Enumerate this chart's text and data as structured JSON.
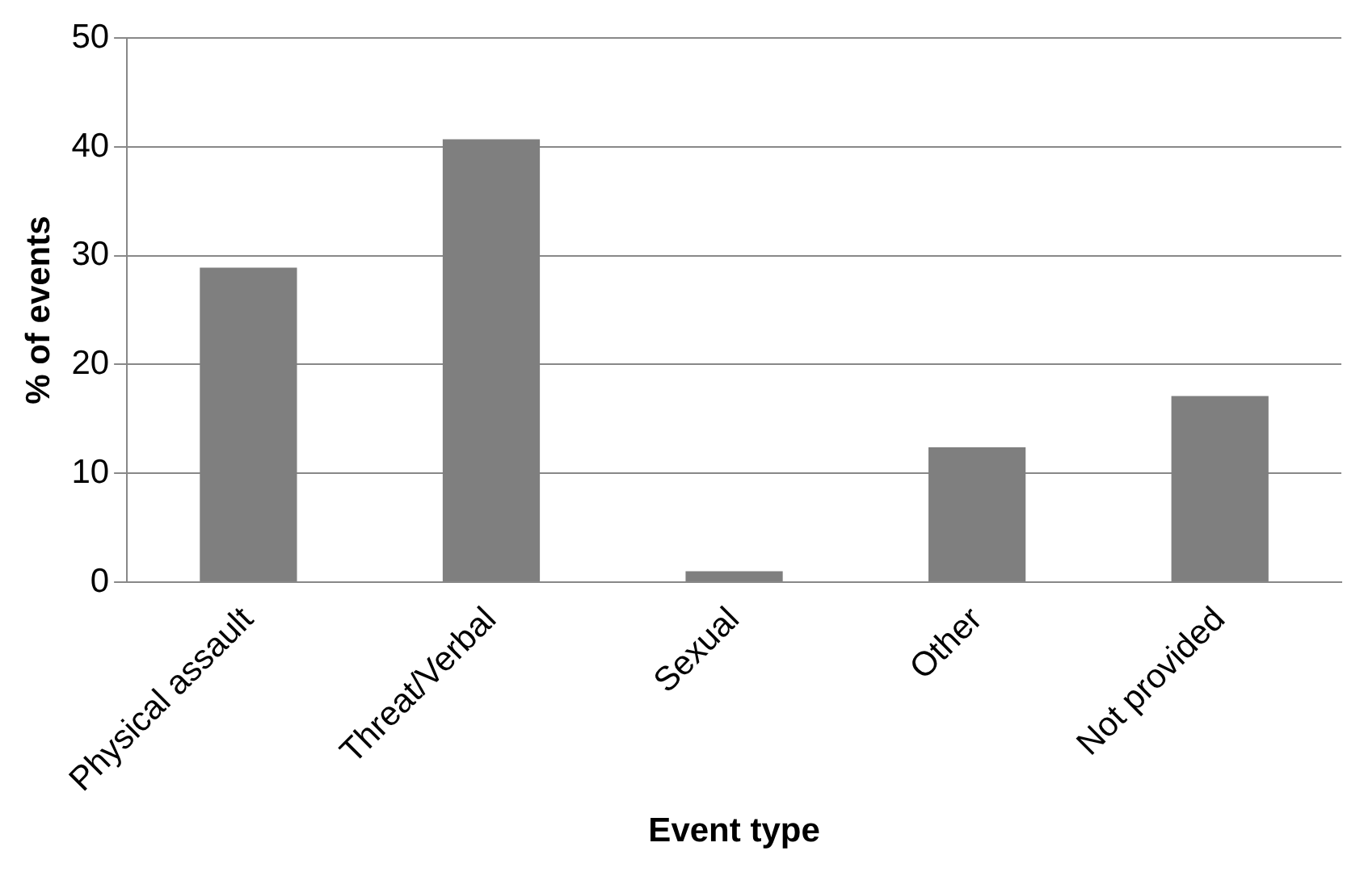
{
  "chart_data": {
    "type": "bar",
    "xlabel": "Event type",
    "ylabel": "% of events",
    "categories": [
      "Physical assault",
      "Threat/Verbal",
      "Sexual",
      "Other",
      "Not provided"
    ],
    "values": [
      28.9,
      40.7,
      1.0,
      12.4,
      17.1
    ],
    "color": "#7f7f7f",
    "ylim": [
      0,
      50
    ],
    "yticks": [
      0,
      10,
      20,
      30,
      40,
      50
    ],
    "grid": "y",
    "legend": false
  }
}
